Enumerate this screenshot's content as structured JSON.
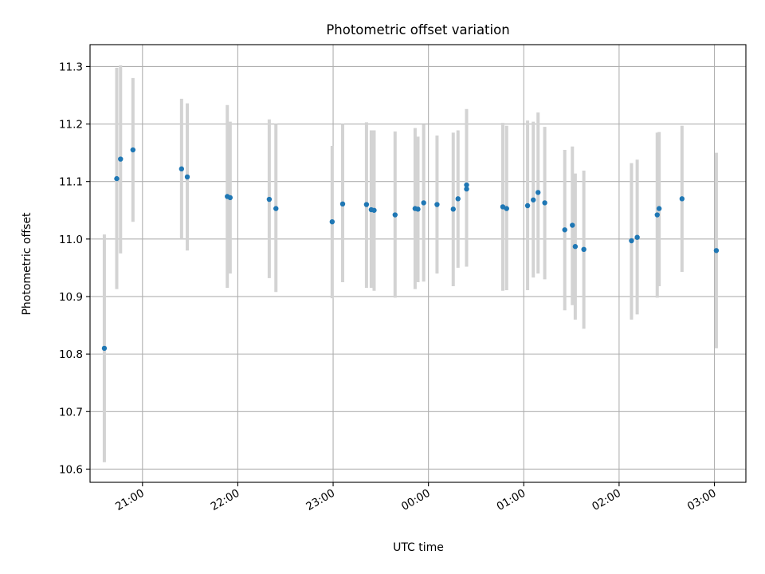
{
  "chart_data": {
    "type": "scatter",
    "title": "Photometric offset variation",
    "xlabel": "UTC time",
    "ylabel": "Photometric offset",
    "grid": true,
    "x_axis_type": "time",
    "x_unit": "UTC time (hours; values past 24 are after midnight)",
    "xlim": [
      20.45,
      27.33
    ],
    "ylim": [
      10.577,
      11.338
    ],
    "x_ticks": [
      {
        "x": 21,
        "label": "21:00"
      },
      {
        "x": 22,
        "label": "22:00"
      },
      {
        "x": 23,
        "label": "23:00"
      },
      {
        "x": 24,
        "label": "00:00"
      },
      {
        "x": 25,
        "label": "01:00"
      },
      {
        "x": 26,
        "label": "02:00"
      },
      {
        "x": 27,
        "label": "03:00"
      }
    ],
    "y_ticks": [
      {
        "y": 10.6,
        "label": "10.6"
      },
      {
        "y": 10.7,
        "label": "10.7"
      },
      {
        "y": 10.8,
        "label": "10.8"
      },
      {
        "y": 10.9,
        "label": "10.9"
      },
      {
        "y": 11.0,
        "label": "11.0"
      },
      {
        "y": 11.1,
        "label": "11.1"
      },
      {
        "y": 11.2,
        "label": "11.2"
      },
      {
        "y": 11.3,
        "label": "11.3"
      }
    ],
    "colors": {
      "point": "#1f77b4",
      "errorbar": "#d3d3d3",
      "grid": "#b0b0b0"
    },
    "points": [
      {
        "x": 20.6,
        "y": 10.81,
        "lo": 10.612,
        "hi": 11.008
      },
      {
        "x": 20.73,
        "y": 11.105,
        "lo": 10.913,
        "hi": 11.298
      },
      {
        "x": 20.77,
        "y": 11.139,
        "lo": 10.975,
        "hi": 11.302
      },
      {
        "x": 20.9,
        "y": 11.155,
        "lo": 11.03,
        "hi": 11.28
      },
      {
        "x": 21.41,
        "y": 11.122,
        "lo": 11.0,
        "hi": 11.244
      },
      {
        "x": 21.47,
        "y": 11.108,
        "lo": 10.98,
        "hi": 11.236
      },
      {
        "x": 21.89,
        "y": 11.074,
        "lo": 10.915,
        "hi": 11.233
      },
      {
        "x": 21.92,
        "y": 11.072,
        "lo": 10.94,
        "hi": 11.204
      },
      {
        "x": 22.33,
        "y": 11.069,
        "lo": 10.932,
        "hi": 11.208
      },
      {
        "x": 22.4,
        "y": 11.053,
        "lo": 10.908,
        "hi": 11.2
      },
      {
        "x": 22.99,
        "y": 11.03,
        "lo": 10.897,
        "hi": 11.162
      },
      {
        "x": 23.1,
        "y": 11.061,
        "lo": 10.925,
        "hi": 11.2
      },
      {
        "x": 23.35,
        "y": 11.06,
        "lo": 10.915,
        "hi": 11.203
      },
      {
        "x": 23.4,
        "y": 11.051,
        "lo": 10.915,
        "hi": 11.189
      },
      {
        "x": 23.43,
        "y": 11.05,
        "lo": 10.91,
        "hi": 11.189
      },
      {
        "x": 23.65,
        "y": 11.042,
        "lo": 10.898,
        "hi": 11.187
      },
      {
        "x": 23.86,
        "y": 11.053,
        "lo": 10.913,
        "hi": 11.193
      },
      {
        "x": 23.89,
        "y": 11.052,
        "lo": 10.925,
        "hi": 11.178
      },
      {
        "x": 23.95,
        "y": 11.063,
        "lo": 10.926,
        "hi": 11.199
      },
      {
        "x": 24.09,
        "y": 11.06,
        "lo": 10.94,
        "hi": 11.18
      },
      {
        "x": 24.26,
        "y": 11.052,
        "lo": 10.918,
        "hi": 11.185
      },
      {
        "x": 24.31,
        "y": 11.07,
        "lo": 10.95,
        "hi": 11.189
      },
      {
        "x": 24.4,
        "y": 11.094,
        "lo": 10.958,
        "hi": 11.22
      },
      {
        "x": 24.4,
        "y": 11.087,
        "lo": 10.952,
        "hi": 11.226
      },
      {
        "x": 24.78,
        "y": 11.056,
        "lo": 10.91,
        "hi": 11.202
      },
      {
        "x": 24.82,
        "y": 11.053,
        "lo": 10.911,
        "hi": 11.197
      },
      {
        "x": 25.04,
        "y": 11.058,
        "lo": 10.911,
        "hi": 11.206
      },
      {
        "x": 25.1,
        "y": 11.068,
        "lo": 10.933,
        "hi": 11.204
      },
      {
        "x": 25.15,
        "y": 11.081,
        "lo": 10.94,
        "hi": 11.22
      },
      {
        "x": 25.22,
        "y": 11.063,
        "lo": 10.93,
        "hi": 11.195
      },
      {
        "x": 25.43,
        "y": 11.016,
        "lo": 10.876,
        "hi": 11.155
      },
      {
        "x": 25.51,
        "y": 11.024,
        "lo": 10.885,
        "hi": 11.161
      },
      {
        "x": 25.54,
        "y": 10.987,
        "lo": 10.86,
        "hi": 11.114
      },
      {
        "x": 25.63,
        "y": 10.982,
        "lo": 10.844,
        "hi": 11.119
      },
      {
        "x": 26.13,
        "y": 10.997,
        "lo": 10.86,
        "hi": 11.132
      },
      {
        "x": 26.19,
        "y": 11.003,
        "lo": 10.869,
        "hi": 11.138
      },
      {
        "x": 26.4,
        "y": 11.042,
        "lo": 10.898,
        "hi": 11.185
      },
      {
        "x": 26.42,
        "y": 11.053,
        "lo": 10.918,
        "hi": 11.186
      },
      {
        "x": 26.66,
        "y": 11.07,
        "lo": 10.943,
        "hi": 11.197
      },
      {
        "x": 27.02,
        "y": 10.98,
        "lo": 10.81,
        "hi": 11.15
      }
    ]
  }
}
